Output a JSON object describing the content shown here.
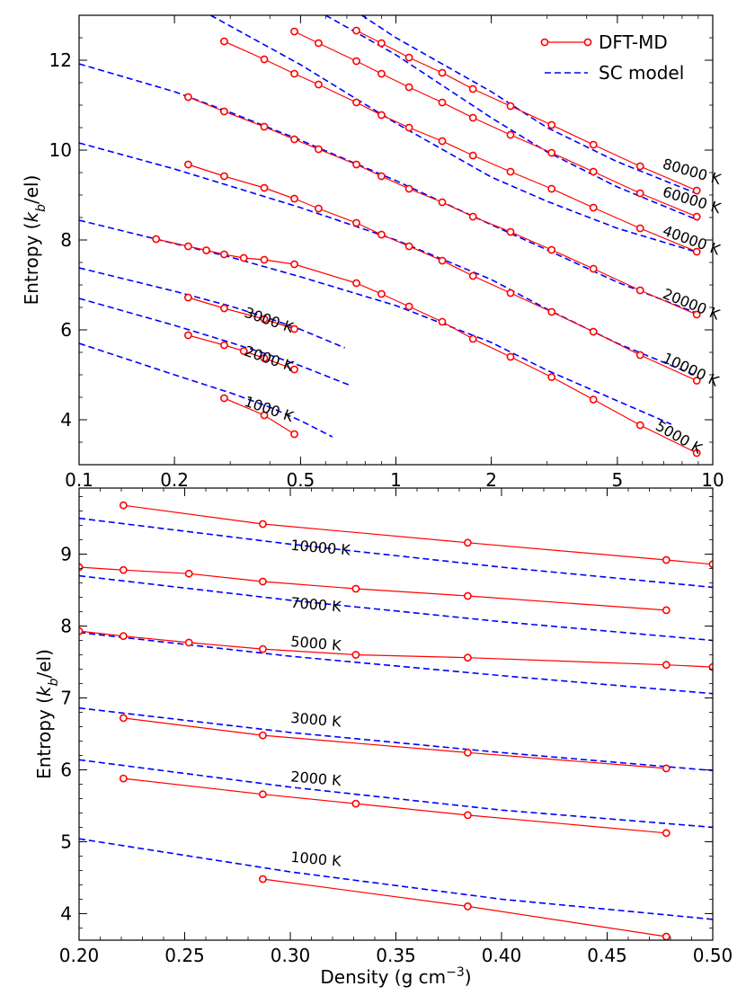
{
  "chart_data": [
    {
      "type": "line",
      "panel": "top",
      "xscale": "log",
      "xlim": [
        0.1,
        10
      ],
      "ylim": [
        3.0,
        13.0
      ],
      "xticks": [
        0.1,
        0.2,
        0.5,
        1,
        2,
        5,
        10
      ],
      "xtick_labels": [
        "0.1",
        "0.2",
        "0.5",
        "1",
        "2",
        "5",
        "10"
      ],
      "yticks": [
        4,
        6,
        8,
        10,
        12
      ],
      "ytick_labels": [
        "4",
        "6",
        "8",
        "10",
        "12"
      ],
      "xlabel": "",
      "ylabel": "Entropy (k_b/el)",
      "legend": {
        "position": "top-right",
        "entries": [
          {
            "label": "DFT-MD",
            "color": "#ff0000",
            "style": "solid-circle"
          },
          {
            "label": "SC model",
            "color": "#0000ff",
            "style": "dashed"
          }
        ]
      },
      "series": [
        {
          "name": "DFT-MD 1000 K",
          "kind": "dft",
          "x": [
            0.287,
            0.384,
            0.478
          ],
          "y": [
            4.48,
            4.1,
            3.68
          ]
        },
        {
          "name": "DFT-MD 2000 K",
          "kind": "dft",
          "x": [
            0.221,
            0.287,
            0.331,
            0.384,
            0.478
          ],
          "y": [
            5.88,
            5.66,
            5.53,
            5.37,
            5.12
          ]
        },
        {
          "name": "DFT-MD 3000 K",
          "kind": "dft",
          "x": [
            0.221,
            0.287,
            0.384,
            0.478
          ],
          "y": [
            6.72,
            6.48,
            6.24,
            6.02
          ]
        },
        {
          "name": "DFT-MD 5000 K",
          "kind": "dft",
          "x": [
            0.175,
            0.221,
            0.252,
            0.287,
            0.331,
            0.384,
            0.478,
            0.75,
            0.9,
            1.1,
            1.4,
            1.75,
            2.3,
            3.1,
            4.2,
            5.9,
            8.9
          ],
          "y": [
            8.02,
            7.86,
            7.77,
            7.68,
            7.6,
            7.56,
            7.46,
            7.04,
            6.8,
            6.52,
            6.18,
            5.8,
            5.4,
            4.95,
            4.45,
            3.88,
            3.26
          ]
        },
        {
          "name": "DFT-MD 10000 K",
          "kind": "dft",
          "x": [
            0.221,
            0.287,
            0.384,
            0.478,
            0.57,
            0.75,
            0.9,
            1.1,
            1.4,
            1.75,
            2.3,
            3.1,
            4.2,
            5.9,
            8.9
          ],
          "y": [
            9.68,
            9.42,
            9.16,
            8.92,
            8.7,
            8.38,
            8.12,
            7.86,
            7.54,
            7.2,
            6.82,
            6.4,
            5.96,
            5.44,
            4.87
          ]
        },
        {
          "name": "DFT-MD 20000 K",
          "kind": "dft",
          "x": [
            0.221,
            0.287,
            0.384,
            0.478,
            0.57,
            0.75,
            0.9,
            1.1,
            1.4,
            1.75,
            2.3,
            3.1,
            4.2,
            5.9,
            8.9
          ],
          "y": [
            11.18,
            10.86,
            10.52,
            10.24,
            10.02,
            9.68,
            9.42,
            9.14,
            8.84,
            8.52,
            8.18,
            7.78,
            7.36,
            6.88,
            6.34
          ]
        },
        {
          "name": "DFT-MD 40000 K",
          "kind": "dft",
          "x": [
            0.287,
            0.384,
            0.478,
            0.57,
            0.75,
            0.9,
            1.1,
            1.4,
            1.75,
            2.3,
            3.1,
            4.2,
            5.9,
            8.9
          ],
          "y": [
            12.42,
            12.02,
            11.7,
            11.46,
            11.06,
            10.78,
            10.5,
            10.2,
            9.88,
            9.52,
            9.14,
            8.72,
            8.26,
            7.74
          ]
        },
        {
          "name": "DFT-MD 60000 K",
          "kind": "dft",
          "x": [
            0.478,
            0.57,
            0.75,
            0.9,
            1.1,
            1.4,
            1.75,
            2.3,
            3.1,
            4.2,
            5.9,
            8.9
          ],
          "y": [
            12.64,
            12.38,
            11.98,
            11.7,
            11.4,
            11.06,
            10.72,
            10.34,
            9.94,
            9.52,
            9.04,
            8.52
          ]
        },
        {
          "name": "DFT-MD 80000 K",
          "kind": "dft",
          "x": [
            0.75,
            0.9,
            1.1,
            1.4,
            1.75,
            2.3,
            3.1,
            4.2,
            5.9,
            8.9
          ],
          "y": [
            12.66,
            12.38,
            12.06,
            11.72,
            11.36,
            10.98,
            10.56,
            10.12,
            9.64,
            9.1
          ]
        },
        {
          "name": "SC model 1000 K",
          "kind": "sc",
          "x": [
            0.1,
            0.2,
            0.3,
            0.4,
            0.5,
            0.63
          ],
          "y": [
            5.7,
            5.0,
            4.6,
            4.28,
            3.98,
            3.62
          ]
        },
        {
          "name": "SC model 2000 K",
          "kind": "sc",
          "x": [
            0.1,
            0.2,
            0.3,
            0.4,
            0.5,
            0.72
          ],
          "y": [
            6.7,
            6.1,
            5.72,
            5.44,
            5.2,
            4.76
          ]
        },
        {
          "name": "SC model 3000 K",
          "kind": "sc",
          "x": [
            0.1,
            0.2,
            0.3,
            0.4,
            0.5,
            0.69
          ],
          "y": [
            7.38,
            6.86,
            6.53,
            6.25,
            6.01,
            5.6
          ]
        },
        {
          "name": "SC model 5000 K",
          "kind": "sc",
          "x": [
            0.1,
            0.2,
            0.3,
            0.5,
            1.0,
            2.0,
            3.0,
            5.0,
            7.4
          ],
          "y": [
            8.44,
            7.92,
            7.62,
            7.18,
            6.54,
            5.72,
            5.1,
            4.42,
            3.9
          ]
        },
        {
          "name": "SC model 10000 K",
          "kind": "sc",
          "x": [
            0.1,
            0.2,
            0.3,
            0.5,
            1.0,
            2.0,
            3.0,
            5.0,
            9.0
          ],
          "y": [
            10.16,
            9.58,
            9.2,
            8.72,
            8.0,
            7.12,
            6.46,
            5.7,
            4.96
          ]
        },
        {
          "name": "SC model 20000 K",
          "kind": "sc",
          "x": [
            0.1,
            0.2,
            0.3,
            0.5,
            1.0,
            2.0,
            3.0,
            5.0,
            9.0
          ],
          "y": [
            11.92,
            11.3,
            10.84,
            10.22,
            9.32,
            8.34,
            7.78,
            7.06,
            6.36
          ]
        },
        {
          "name": "SC model 40000 K",
          "kind": "sc",
          "x": [
            0.26,
            0.5,
            1.0,
            2.0,
            3.0,
            5.0,
            9.0
          ],
          "y": [
            13.0,
            11.9,
            10.6,
            9.4,
            8.86,
            8.26,
            7.72
          ]
        },
        {
          "name": "SC model 60000 K",
          "kind": "sc",
          "x": [
            0.6,
            1.0,
            2.0,
            3.0,
            5.0,
            9.0
          ],
          "y": [
            13.0,
            12.12,
            10.72,
            9.96,
            9.18,
            8.44
          ]
        },
        {
          "name": "SC model 80000 K",
          "kind": "sc",
          "x": [
            0.78,
            1.0,
            2.0,
            3.0,
            5.0,
            9.0
          ],
          "y": [
            13.0,
            12.5,
            11.3,
            10.5,
            9.74,
            9.02
          ]
        }
      ],
      "annotations": [
        {
          "text": "1000 K",
          "x": 0.33,
          "y": 4.32,
          "angle": 19
        },
        {
          "text": "2000 K",
          "x": 0.33,
          "y": 5.44,
          "angle": 19
        },
        {
          "text": "3000 K",
          "x": 0.33,
          "y": 6.3,
          "angle": 19
        },
        {
          "text": "5000 K",
          "x": 6.55,
          "y": 3.8,
          "angle": 30
        },
        {
          "text": "10000 K",
          "x": 6.9,
          "y": 5.3,
          "angle": 25
        },
        {
          "text": "20000 K",
          "x": 6.9,
          "y": 6.72,
          "angle": 22
        },
        {
          "text": "40000 K",
          "x": 6.9,
          "y": 8.12,
          "angle": 20
        },
        {
          "text": "60000 K",
          "x": 6.9,
          "y": 8.98,
          "angle": 17
        },
        {
          "text": "80000 K",
          "x": 6.9,
          "y": 9.6,
          "angle": 16
        }
      ]
    },
    {
      "type": "line",
      "panel": "bottom",
      "xscale": "linear",
      "xlim": [
        0.2,
        0.5
      ],
      "ylim": [
        3.63,
        9.92
      ],
      "xticks": [
        0.2,
        0.25,
        0.3,
        0.35,
        0.4,
        0.45,
        0.5
      ],
      "xtick_labels": [
        "0.20",
        "0.25",
        "0.30",
        "0.35",
        "0.40",
        "0.45",
        "0.50"
      ],
      "yticks": [
        4,
        5,
        6,
        7,
        8,
        9
      ],
      "ytick_labels": [
        "4",
        "5",
        "6",
        "7",
        "8",
        "9"
      ],
      "xlabel": "Density (g cm^-3)",
      "ylabel": "Entropy (k_b/el)",
      "series": [
        {
          "name": "DFT-MD 1000 K",
          "kind": "dft",
          "x": [
            0.287,
            0.384,
            0.478
          ],
          "y": [
            4.48,
            4.1,
            3.68
          ]
        },
        {
          "name": "DFT-MD 2000 K",
          "kind": "dft",
          "x": [
            0.221,
            0.287,
            0.331,
            0.384,
            0.478
          ],
          "y": [
            5.88,
            5.66,
            5.53,
            5.37,
            5.12
          ]
        },
        {
          "name": "DFT-MD 3000 K",
          "kind": "dft",
          "x": [
            0.221,
            0.287,
            0.384,
            0.478
          ],
          "y": [
            6.72,
            6.48,
            6.24,
            6.02
          ]
        },
        {
          "name": "DFT-MD 5000 K",
          "kind": "dft",
          "x": [
            0.2,
            0.221,
            0.252,
            0.287,
            0.331,
            0.384,
            0.478,
            0.5
          ],
          "y": [
            7.93,
            7.86,
            7.77,
            7.68,
            7.6,
            7.56,
            7.46,
            7.43
          ]
        },
        {
          "name": "DFT-MD 7000 K",
          "kind": "dft",
          "x": [
            0.2,
            0.221,
            0.252,
            0.287,
            0.331,
            0.384,
            0.478
          ],
          "y": [
            8.82,
            8.78,
            8.73,
            8.62,
            8.52,
            8.42,
            8.22
          ]
        },
        {
          "name": "DFT-MD 10000 K",
          "kind": "dft",
          "x": [
            0.221,
            0.287,
            0.384,
            0.478,
            0.5
          ],
          "y": [
            9.68,
            9.42,
            9.16,
            8.92,
            8.86
          ]
        },
        {
          "name": "SC model 1000 K",
          "kind": "sc",
          "x": [
            0.2,
            0.3,
            0.4,
            0.5
          ],
          "y": [
            5.04,
            4.58,
            4.2,
            3.92
          ]
        },
        {
          "name": "SC model 2000 K",
          "kind": "sc",
          "x": [
            0.2,
            0.3,
            0.4,
            0.5
          ],
          "y": [
            6.14,
            5.76,
            5.44,
            5.2
          ]
        },
        {
          "name": "SC model 3000 K",
          "kind": "sc",
          "x": [
            0.2,
            0.3,
            0.4,
            0.5
          ],
          "y": [
            6.86,
            6.52,
            6.24,
            5.99
          ]
        },
        {
          "name": "SC model 5000 K",
          "kind": "sc",
          "x": [
            0.2,
            0.3,
            0.4,
            0.5
          ],
          "y": [
            7.91,
            7.58,
            7.31,
            7.06
          ]
        },
        {
          "name": "SC model 7000 K",
          "kind": "sc",
          "x": [
            0.2,
            0.3,
            0.4,
            0.5
          ],
          "y": [
            8.7,
            8.36,
            8.06,
            7.8
          ]
        },
        {
          "name": "SC model 10000 K",
          "kind": "sc",
          "x": [
            0.2,
            0.3,
            0.4,
            0.5
          ],
          "y": [
            9.5,
            9.14,
            8.82,
            8.54
          ]
        }
      ],
      "annotations": [
        {
          "text": "1000 K",
          "x": 0.3,
          "y": 4.72,
          "angle": 5
        },
        {
          "text": "2000 K",
          "x": 0.3,
          "y": 5.84,
          "angle": 5
        },
        {
          "text": "3000 K",
          "x": 0.3,
          "y": 6.66,
          "angle": 5
        },
        {
          "text": "5000 K",
          "x": 0.3,
          "y": 7.72,
          "angle": 5
        },
        {
          "text": "7000 K",
          "x": 0.3,
          "y": 8.26,
          "angle": 5
        },
        {
          "text": "10000 K",
          "x": 0.3,
          "y": 9.06,
          "angle": 5
        }
      ]
    }
  ],
  "colors": {
    "dft": "#ff0000",
    "sc": "#0000ff",
    "axes": "#000000",
    "background": "#ffffff"
  }
}
